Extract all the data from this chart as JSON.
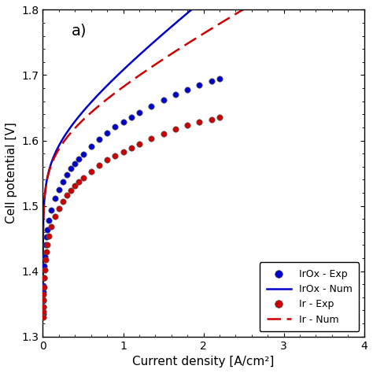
{
  "title_label": "a)",
  "xlabel": "Current density [A/cm²]",
  "ylabel": "Cell potential [V]",
  "xlim": [
    0,
    4
  ],
  "ylim": [
    1.3,
    1.8
  ],
  "xticks": [
    0,
    1,
    2,
    3,
    4
  ],
  "yticks": [
    1.3,
    1.4,
    1.5,
    1.6,
    1.7,
    1.8
  ],
  "irox_color": "#0000cc",
  "ir_color": "#cc0000",
  "background_color": "#ffffff",
  "irox_V0": 1.23,
  "irox_b": 0.065,
  "irox_i0": 1e-06,
  "irox_R": 0.088,
  "ir_V0": 1.23,
  "ir_b": 0.065,
  "ir_i0": 1e-06,
  "ir_R": 0.062,
  "irox_exp_x": [
    0.001,
    0.002,
    0.003,
    0.005,
    0.007,
    0.01,
    0.015,
    0.02,
    0.03,
    0.04,
    0.05,
    0.07,
    0.1,
    0.15,
    0.2,
    0.25,
    0.3,
    0.35,
    0.4,
    0.45,
    0.5,
    0.6,
    0.7,
    0.8,
    0.9,
    1.0,
    1.1,
    1.2,
    1.35,
    1.5,
    1.65,
    1.8,
    1.95,
    2.1,
    2.2
  ],
  "irox_exp_y": [
    1.335,
    1.345,
    1.355,
    1.368,
    1.378,
    1.39,
    1.408,
    1.422,
    1.44,
    1.453,
    1.463,
    1.478,
    1.493,
    1.512,
    1.525,
    1.537,
    1.548,
    1.557,
    1.565,
    1.572,
    1.579,
    1.591,
    1.602,
    1.612,
    1.621,
    1.628,
    1.636,
    1.643,
    1.653,
    1.662,
    1.67,
    1.678,
    1.685,
    1.691,
    1.695
  ],
  "ir_exp_x": [
    0.001,
    0.002,
    0.003,
    0.005,
    0.007,
    0.01,
    0.015,
    0.02,
    0.03,
    0.04,
    0.05,
    0.07,
    0.1,
    0.15,
    0.2,
    0.25,
    0.3,
    0.35,
    0.4,
    0.45,
    0.5,
    0.6,
    0.7,
    0.8,
    0.9,
    1.0,
    1.1,
    1.2,
    1.35,
    1.5,
    1.65,
    1.8,
    1.95,
    2.1,
    2.2
  ],
  "ir_exp_y": [
    1.33,
    1.338,
    1.345,
    1.356,
    1.364,
    1.375,
    1.39,
    1.402,
    1.418,
    1.43,
    1.44,
    1.454,
    1.468,
    1.484,
    1.496,
    1.507,
    1.516,
    1.524,
    1.531,
    1.537,
    1.543,
    1.553,
    1.562,
    1.57,
    1.577,
    1.583,
    1.589,
    1.595,
    1.603,
    1.61,
    1.617,
    1.623,
    1.628,
    1.632,
    1.635
  ]
}
